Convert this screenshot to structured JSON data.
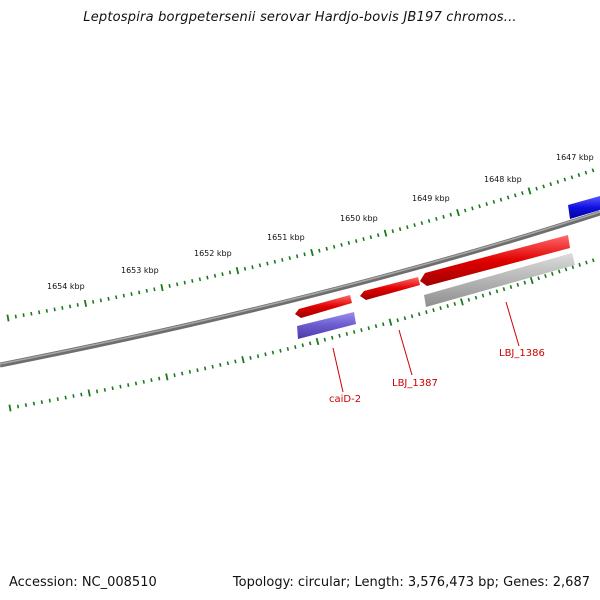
{
  "title": "Leptospira borgpetersenii serovar Hardjo-bovis JB197 chromos...",
  "footer": {
    "accession": "Accession: NC_008510",
    "summary": "Topology: circular; Length: 3,576,473 bp; Genes: 2,687"
  },
  "ruler": {
    "tick_labels": [
      "1654 kbp",
      "1653 kbp",
      "1652 kbp",
      "1651 kbp",
      "1650 kbp",
      "1649 kbp",
      "1648 kbp",
      "1647 kbp"
    ]
  },
  "genes": [
    {
      "label": "caiD-2",
      "color": "#e00000"
    },
    {
      "label": "LBJ_1387",
      "color": "#e00000"
    },
    {
      "label": "LBJ_1386",
      "color": "#e00000"
    }
  ],
  "colors": {
    "backbone": "#777777",
    "ticks": "#1a7a1a",
    "cds_forward": "#e00000",
    "cds_reverse": "#6a5acd",
    "other_feature": "#1010e0",
    "gray_feature": "#b0b0b0"
  }
}
